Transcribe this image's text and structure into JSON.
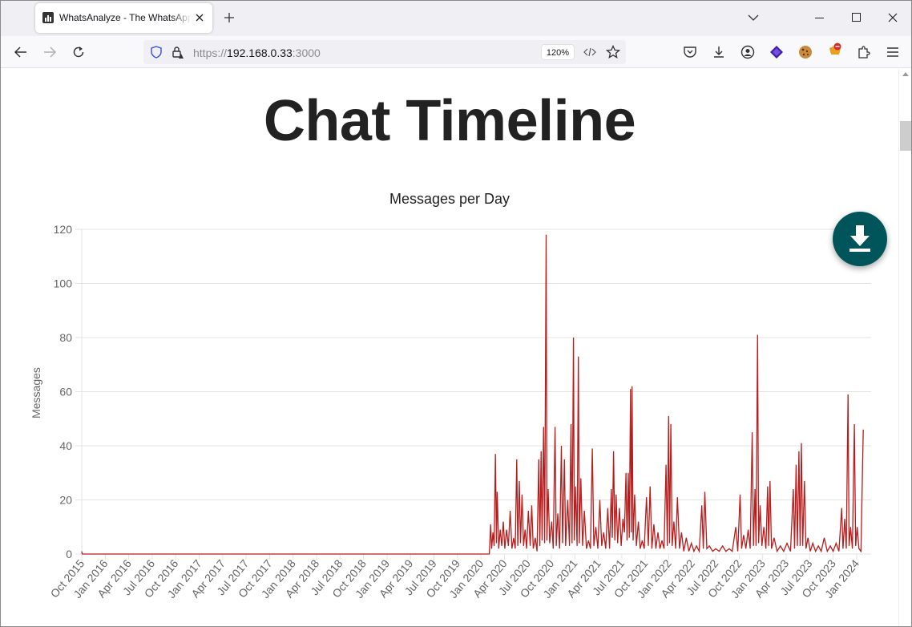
{
  "browser": {
    "tab_title": "WhatsAnalyze - The WhatsApp",
    "url_scheme": "https://",
    "url_host": "192.168.0.33",
    "url_port": ":3000",
    "zoom_level": "120%"
  },
  "page": {
    "title": "Chat Timeline"
  },
  "colors": {
    "line": "#b81c1c",
    "fab": "#00555a"
  },
  "chart_data": {
    "type": "line",
    "title": "Messages per Day",
    "xlabel": "",
    "ylabel": "Messages",
    "ylim": [
      0,
      120
    ],
    "y_ticks": [
      0,
      20,
      40,
      60,
      80,
      100,
      120
    ],
    "grid": true,
    "x_tick_labels": [
      "Oct 2015",
      "Jan 2016",
      "Apr 2016",
      "Jul 2016",
      "Oct 2016",
      "Jan 2017",
      "Apr 2017",
      "Jul 2017",
      "Oct 2017",
      "Jan 2018",
      "Apr 2018",
      "Jul 2018",
      "Oct 2018",
      "Jan 2019",
      "Apr 2019",
      "Jul 2019",
      "Oct 2019",
      "Jan 2020",
      "Apr 2020",
      "Jul 2020",
      "Oct 2020",
      "Jan 2021",
      "Apr 2021",
      "Jul 2021",
      "Oct 2021",
      "Jan 2022",
      "Apr 2022",
      "Jul 2022",
      "Oct 2022",
      "Jan 2023",
      "Apr 2023",
      "Jul 2023",
      "Oct 2023",
      "Jan 2024"
    ],
    "x_range": [
      "2015-10-01",
      "2024-04-10"
    ],
    "series": [
      {
        "name": "",
        "points": [
          [
            "2015-10-01",
            1
          ],
          [
            "2015-10-03",
            0
          ],
          [
            "2020-02-25",
            0
          ],
          [
            "2020-03-01",
            11
          ],
          [
            "2020-03-05",
            2
          ],
          [
            "2020-03-10",
            8
          ],
          [
            "2020-03-15",
            3
          ],
          [
            "2020-03-20",
            37
          ],
          [
            "2020-03-24",
            4
          ],
          [
            "2020-03-27",
            23
          ],
          [
            "2020-04-02",
            2
          ],
          [
            "2020-04-08",
            9
          ],
          [
            "2020-04-14",
            3
          ],
          [
            "2020-04-20",
            12
          ],
          [
            "2020-04-26",
            2
          ],
          [
            "2020-05-03",
            9
          ],
          [
            "2020-05-10",
            3
          ],
          [
            "2020-05-17",
            16
          ],
          [
            "2020-05-24",
            2
          ],
          [
            "2020-05-31",
            6
          ],
          [
            "2020-06-06",
            2
          ],
          [
            "2020-06-12",
            35
          ],
          [
            "2020-06-16",
            3
          ],
          [
            "2020-06-22",
            27
          ],
          [
            "2020-06-27",
            4
          ],
          [
            "2020-07-03",
            22
          ],
          [
            "2020-07-09",
            3
          ],
          [
            "2020-07-15",
            9
          ],
          [
            "2020-07-21",
            2
          ],
          [
            "2020-07-28",
            16
          ],
          [
            "2020-08-04",
            3
          ],
          [
            "2020-08-10",
            18
          ],
          [
            "2020-08-16",
            2
          ],
          [
            "2020-08-24",
            6
          ],
          [
            "2020-08-31",
            1
          ],
          [
            "2020-09-07",
            35
          ],
          [
            "2020-09-11",
            3
          ],
          [
            "2020-09-16",
            38
          ],
          [
            "2020-09-20",
            5
          ],
          [
            "2020-09-26",
            47
          ],
          [
            "2020-09-30",
            4
          ],
          [
            "2020-10-06",
            118
          ],
          [
            "2020-10-09",
            5
          ],
          [
            "2020-10-14",
            24
          ],
          [
            "2020-10-20",
            4
          ],
          [
            "2020-10-28",
            12
          ],
          [
            "2020-11-03",
            2
          ],
          [
            "2020-11-10",
            47
          ],
          [
            "2020-11-15",
            3
          ],
          [
            "2020-11-21",
            15
          ],
          [
            "2020-11-28",
            2
          ],
          [
            "2020-12-05",
            40
          ],
          [
            "2020-12-10",
            4
          ],
          [
            "2020-12-17",
            35
          ],
          [
            "2020-12-22",
            3
          ],
          [
            "2020-12-30",
            20
          ],
          [
            "2021-01-06",
            3
          ],
          [
            "2021-01-12",
            48
          ],
          [
            "2021-01-16",
            4
          ],
          [
            "2021-01-22",
            80
          ],
          [
            "2021-01-25",
            5
          ],
          [
            "2021-01-30",
            25
          ],
          [
            "2021-02-05",
            3
          ],
          [
            "2021-02-10",
            73
          ],
          [
            "2021-02-14",
            4
          ],
          [
            "2021-02-20",
            28
          ],
          [
            "2021-02-27",
            3
          ],
          [
            "2021-03-06",
            16
          ],
          [
            "2021-03-14",
            2
          ],
          [
            "2021-03-22",
            5
          ],
          [
            "2021-03-30",
            2
          ],
          [
            "2021-04-06",
            39
          ],
          [
            "2021-04-12",
            3
          ],
          [
            "2021-04-20",
            10
          ],
          [
            "2021-04-28",
            2
          ],
          [
            "2021-05-06",
            20
          ],
          [
            "2021-05-13",
            3
          ],
          [
            "2021-05-21",
            8
          ],
          [
            "2021-05-29",
            2
          ],
          [
            "2021-06-06",
            17
          ],
          [
            "2021-06-13",
            2
          ],
          [
            "2021-06-20",
            24
          ],
          [
            "2021-06-24",
            6
          ],
          [
            "2021-06-29",
            38
          ],
          [
            "2021-07-04",
            5
          ],
          [
            "2021-07-09",
            22
          ],
          [
            "2021-07-15",
            4
          ],
          [
            "2021-07-22",
            17
          ],
          [
            "2021-07-29",
            3
          ],
          [
            "2021-08-05",
            13
          ],
          [
            "2021-08-11",
            8
          ],
          [
            "2021-08-17",
            30
          ],
          [
            "2021-08-21",
            5
          ],
          [
            "2021-08-26",
            30
          ],
          [
            "2021-08-30",
            6
          ],
          [
            "2021-09-04",
            61
          ],
          [
            "2021-09-07",
            8
          ],
          [
            "2021-09-10",
            62
          ],
          [
            "2021-09-14",
            5
          ],
          [
            "2021-09-20",
            22
          ],
          [
            "2021-09-27",
            3
          ],
          [
            "2021-10-05",
            12
          ],
          [
            "2021-10-12",
            2
          ],
          [
            "2021-10-20",
            5
          ],
          [
            "2021-10-28",
            2
          ],
          [
            "2021-11-06",
            21
          ],
          [
            "2021-11-13",
            3
          ],
          [
            "2021-11-20",
            25
          ],
          [
            "2021-11-27",
            2
          ],
          [
            "2021-12-05",
            11
          ],
          [
            "2021-12-13",
            2
          ],
          [
            "2021-12-21",
            8
          ],
          [
            "2021-12-29",
            2
          ],
          [
            "2022-01-06",
            5
          ],
          [
            "2022-01-14",
            2
          ],
          [
            "2022-01-22",
            33
          ],
          [
            "2022-01-27",
            3
          ],
          [
            "2022-02-01",
            51
          ],
          [
            "2022-02-05",
            4
          ],
          [
            "2022-02-10",
            48
          ],
          [
            "2022-02-15",
            3
          ],
          [
            "2022-02-22",
            12
          ],
          [
            "2022-03-01",
            2
          ],
          [
            "2022-03-08",
            21
          ],
          [
            "2022-03-16",
            2
          ],
          [
            "2022-03-24",
            8
          ],
          [
            "2022-04-02",
            1
          ],
          [
            "2022-04-12",
            6
          ],
          [
            "2022-04-22",
            1
          ],
          [
            "2022-05-02",
            4
          ],
          [
            "2022-05-12",
            1
          ],
          [
            "2022-05-22",
            3
          ],
          [
            "2022-06-02",
            1
          ],
          [
            "2022-06-12",
            18
          ],
          [
            "2022-06-18",
            2
          ],
          [
            "2022-06-24",
            23
          ],
          [
            "2022-07-02",
            2
          ],
          [
            "2022-07-12",
            3
          ],
          [
            "2022-07-25",
            1
          ],
          [
            "2022-08-06",
            2
          ],
          [
            "2022-08-20",
            1
          ],
          [
            "2022-09-02",
            3
          ],
          [
            "2022-09-15",
            1
          ],
          [
            "2022-09-28",
            2
          ],
          [
            "2022-10-10",
            1
          ],
          [
            "2022-10-24",
            10
          ],
          [
            "2022-11-01",
            1
          ],
          [
            "2022-11-10",
            22
          ],
          [
            "2022-11-16",
            2
          ],
          [
            "2022-11-24",
            7
          ],
          [
            "2022-12-03",
            2
          ],
          [
            "2022-12-12",
            9
          ],
          [
            "2022-12-20",
            2
          ],
          [
            "2022-12-28",
            45
          ],
          [
            "2023-01-02",
            3
          ],
          [
            "2023-01-08",
            24
          ],
          [
            "2023-01-12",
            3
          ],
          [
            "2023-01-18",
            81
          ],
          [
            "2023-01-22",
            4
          ],
          [
            "2023-01-28",
            18
          ],
          [
            "2023-02-04",
            3
          ],
          [
            "2023-02-12",
            10
          ],
          [
            "2023-02-20",
            2
          ],
          [
            "2023-02-27",
            25
          ],
          [
            "2023-03-03",
            3
          ],
          [
            "2023-03-08",
            27
          ],
          [
            "2023-03-14",
            2
          ],
          [
            "2023-03-24",
            6
          ],
          [
            "2023-04-05",
            1
          ],
          [
            "2023-04-18",
            3
          ],
          [
            "2023-05-01",
            1
          ],
          [
            "2023-05-14",
            4
          ],
          [
            "2023-05-28",
            1
          ],
          [
            "2023-06-08",
            24
          ],
          [
            "2023-06-13",
            2
          ],
          [
            "2023-06-19",
            33
          ],
          [
            "2023-06-24",
            3
          ],
          [
            "2023-06-30",
            38
          ],
          [
            "2023-07-05",
            3
          ],
          [
            "2023-07-10",
            41
          ],
          [
            "2023-07-15",
            3
          ],
          [
            "2023-07-22",
            27
          ],
          [
            "2023-07-28",
            2
          ],
          [
            "2023-08-05",
            6
          ],
          [
            "2023-08-14",
            1
          ],
          [
            "2023-08-24",
            4
          ],
          [
            "2023-09-04",
            1
          ],
          [
            "2023-09-15",
            3
          ],
          [
            "2023-09-26",
            1
          ],
          [
            "2023-10-08",
            6
          ],
          [
            "2023-10-20",
            1
          ],
          [
            "2023-11-01",
            3
          ],
          [
            "2023-11-12",
            1
          ],
          [
            "2023-11-24",
            4
          ],
          [
            "2023-12-05",
            1
          ],
          [
            "2023-12-16",
            17
          ],
          [
            "2023-12-21",
            2
          ],
          [
            "2023-12-28",
            13
          ],
          [
            "2024-01-03",
            2
          ],
          [
            "2024-01-10",
            59
          ],
          [
            "2024-01-14",
            3
          ],
          [
            "2024-01-20",
            10
          ],
          [
            "2024-01-27",
            2
          ],
          [
            "2024-02-04",
            48
          ],
          [
            "2024-02-09",
            3
          ],
          [
            "2024-02-15",
            10
          ],
          [
            "2024-02-22",
            2
          ],
          [
            "2024-03-01",
            1
          ],
          [
            "2024-03-10",
            46
          ]
        ]
      }
    ]
  }
}
